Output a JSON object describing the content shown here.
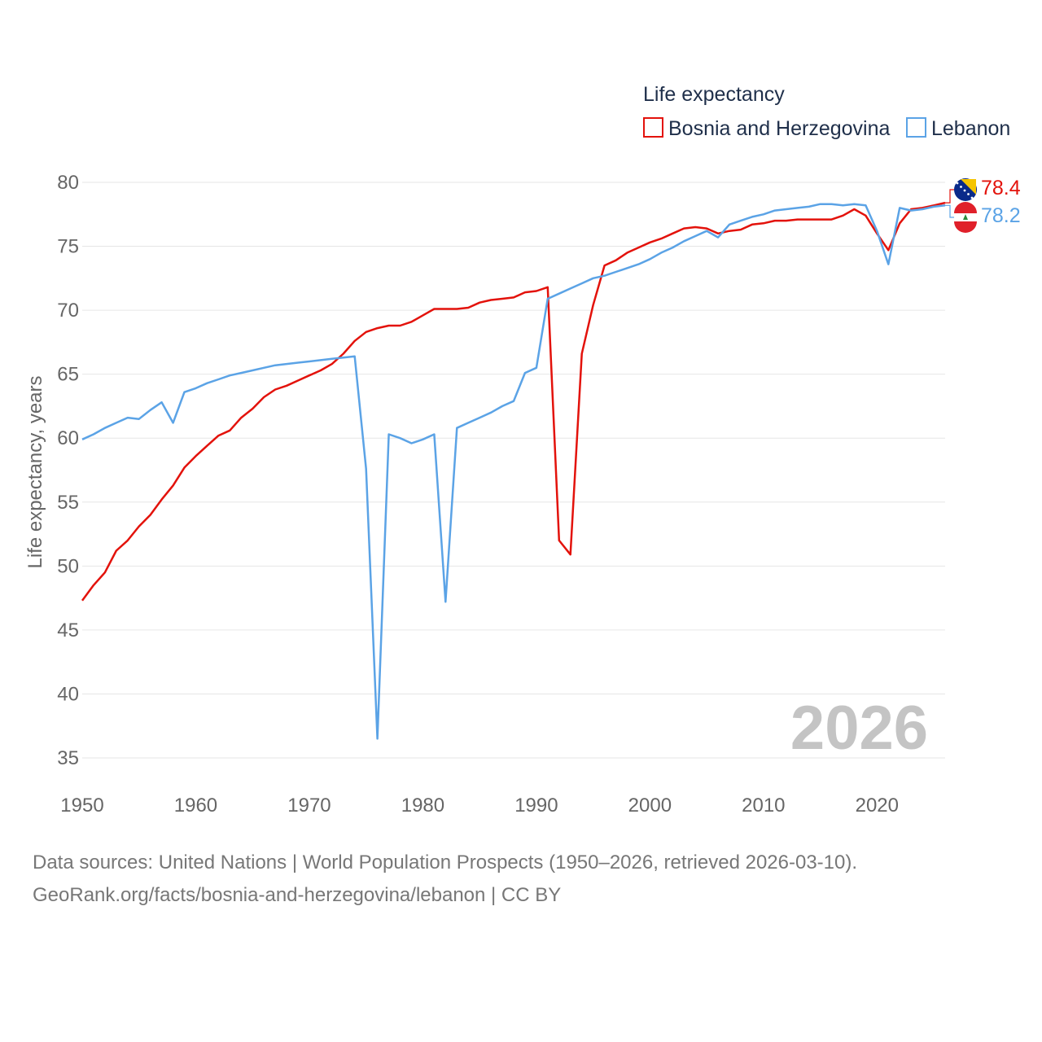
{
  "chart_data": {
    "type": "line",
    "title": "Life expectancy",
    "xlabel": "",
    "ylabel": "Life expectancy, years",
    "xlim": [
      1950,
      2026
    ],
    "ylim": [
      35,
      80
    ],
    "x_ticks": [
      1950,
      1960,
      1970,
      1980,
      1990,
      2000,
      2010,
      2020
    ],
    "y_ticks": [
      35,
      40,
      45,
      50,
      55,
      60,
      65,
      70,
      75,
      80
    ],
    "grid": true,
    "legend_position": "top-right",
    "watermark_year": "2026",
    "x": [
      1950,
      1951,
      1952,
      1953,
      1954,
      1955,
      1956,
      1957,
      1958,
      1959,
      1960,
      1961,
      1962,
      1963,
      1964,
      1965,
      1966,
      1967,
      1968,
      1969,
      1970,
      1971,
      1972,
      1973,
      1974,
      1975,
      1976,
      1977,
      1978,
      1979,
      1980,
      1981,
      1982,
      1983,
      1984,
      1985,
      1986,
      1987,
      1988,
      1989,
      1990,
      1991,
      1992,
      1993,
      1994,
      1995,
      1996,
      1997,
      1998,
      1999,
      2000,
      2001,
      2002,
      2003,
      2004,
      2005,
      2006,
      2007,
      2008,
      2009,
      2010,
      2011,
      2012,
      2013,
      2014,
      2015,
      2016,
      2017,
      2018,
      2019,
      2020,
      2021,
      2022,
      2023,
      2024,
      2025,
      2026
    ],
    "series": [
      {
        "name": "Bosnia and Herzegovina",
        "color": "#e3120b",
        "end_label": "78.4",
        "flag": "bosnia-flag-icon",
        "values": [
          47.3,
          48.5,
          49.5,
          51.2,
          52.0,
          53.1,
          54.0,
          55.2,
          56.3,
          57.7,
          58.6,
          59.4,
          60.2,
          60.6,
          61.6,
          62.3,
          63.2,
          63.8,
          64.1,
          64.5,
          64.9,
          65.3,
          65.8,
          66.6,
          67.6,
          68.3,
          68.6,
          68.8,
          68.8,
          69.1,
          69.6,
          70.1,
          70.1,
          70.1,
          70.2,
          70.6,
          70.8,
          70.9,
          71.0,
          71.4,
          71.5,
          71.8,
          52.0,
          50.9,
          66.6,
          70.4,
          73.5,
          73.9,
          74.5,
          74.9,
          75.3,
          75.6,
          76.0,
          76.4,
          76.5,
          76.4,
          76.0,
          76.2,
          76.3,
          76.7,
          76.8,
          77.0,
          77.0,
          77.1,
          77.1,
          77.1,
          77.1,
          77.4,
          77.9,
          77.4,
          76.0,
          74.7,
          76.8,
          77.9,
          78.0,
          78.2,
          78.4
        ]
      },
      {
        "name": "Lebanon",
        "color": "#5ba3e6",
        "end_label": "78.2",
        "flag": "lebanon-flag-icon",
        "values": [
          59.9,
          60.3,
          60.8,
          61.2,
          61.6,
          61.5,
          62.2,
          62.8,
          61.2,
          63.6,
          63.9,
          64.3,
          64.6,
          64.9,
          65.1,
          65.3,
          65.5,
          65.7,
          65.8,
          65.9,
          66.0,
          66.1,
          66.2,
          66.3,
          66.4,
          57.6,
          36.5,
          60.3,
          60.0,
          59.6,
          59.9,
          60.3,
          47.2,
          60.8,
          61.2,
          61.6,
          62.0,
          62.5,
          62.9,
          65.1,
          65.5,
          70.9,
          71.3,
          71.7,
          72.1,
          72.5,
          72.7,
          73.0,
          73.3,
          73.6,
          74.0,
          74.5,
          74.9,
          75.4,
          75.8,
          76.2,
          75.7,
          76.7,
          77.0,
          77.3,
          77.5,
          77.8,
          77.9,
          78.0,
          78.1,
          78.3,
          78.3,
          78.2,
          78.3,
          78.2,
          76.2,
          73.6,
          78.0,
          77.8,
          77.9,
          78.1,
          78.2
        ]
      }
    ]
  },
  "source": {
    "line1": "Data sources: United Nations | World Population Prospects (1950–2026, retrieved 2026-03-10).",
    "line2": "GeoRank.org/facts/bosnia-and-herzegovina/lebanon | CC BY"
  }
}
